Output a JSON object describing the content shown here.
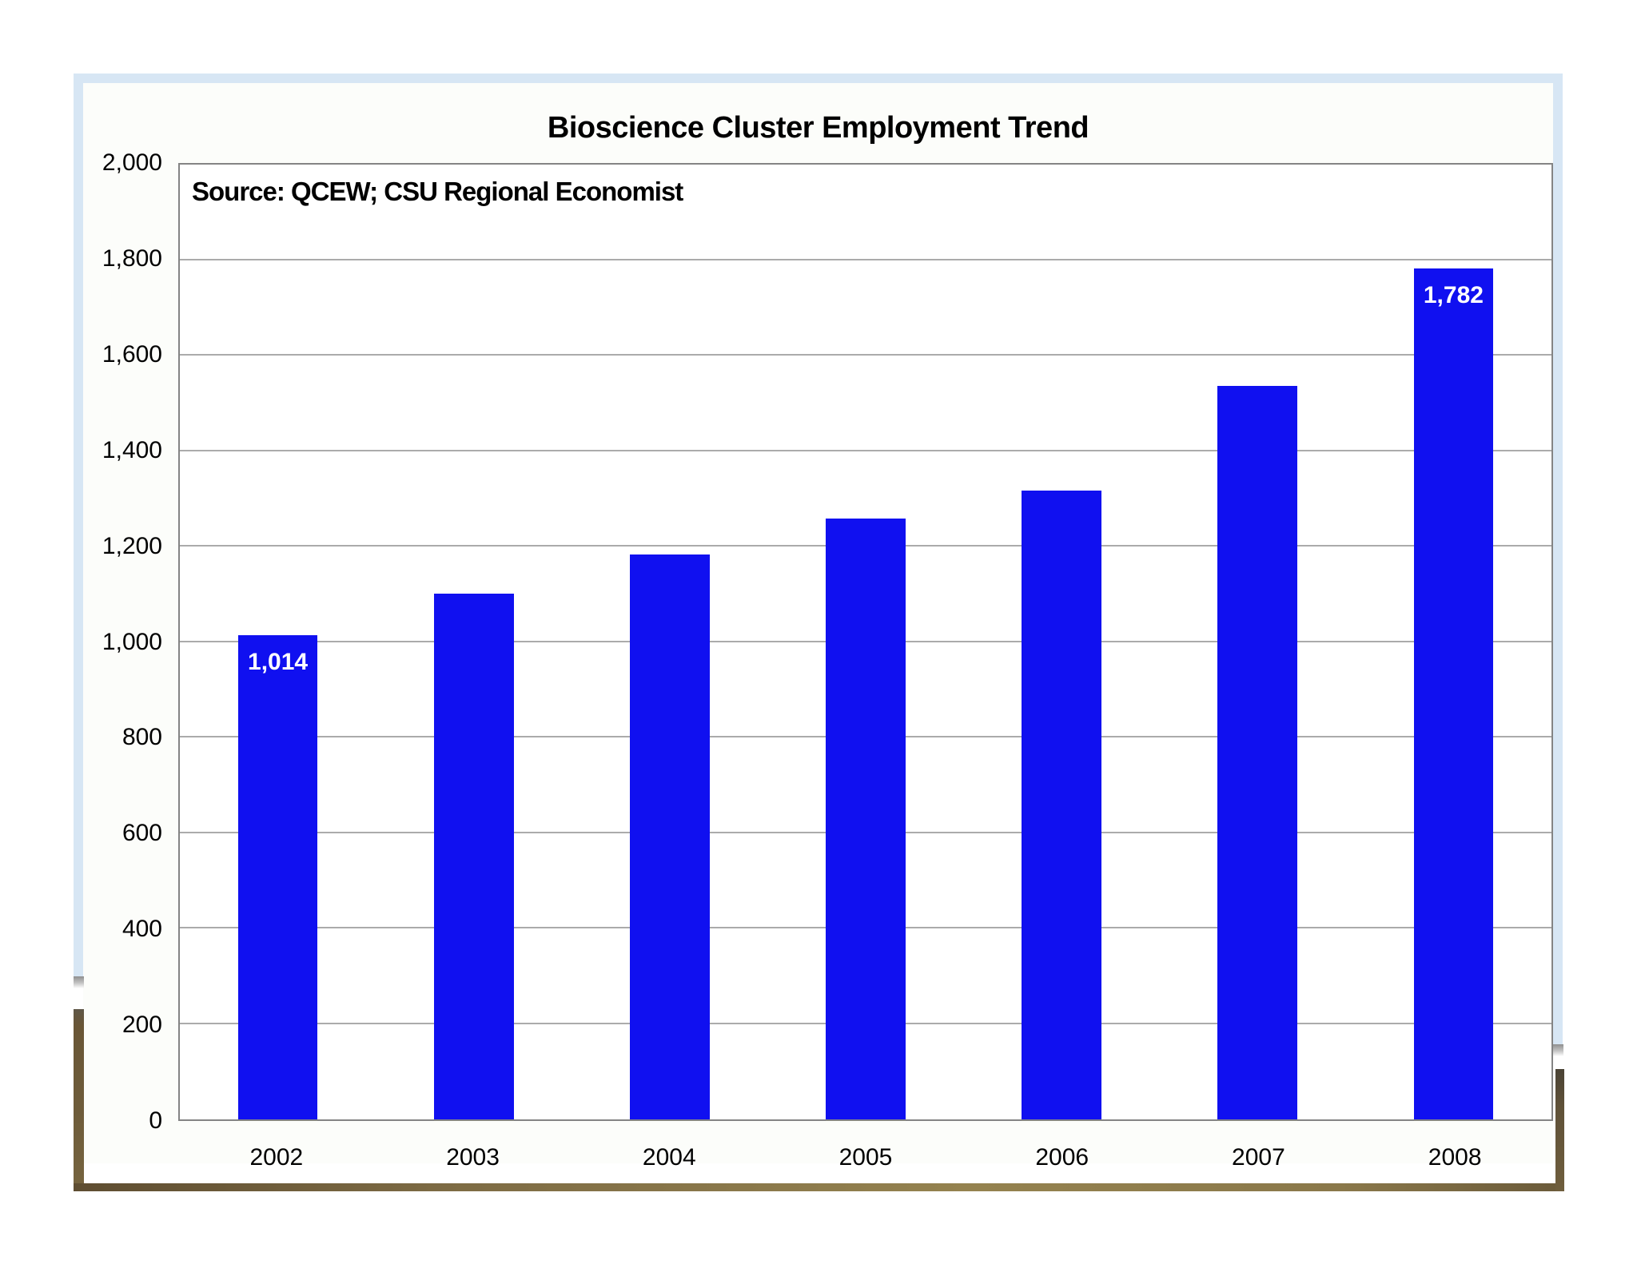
{
  "chart_data": {
    "type": "bar",
    "title": "Bioscience Cluster Employment Trend",
    "source_note": "Source: QCEW; CSU Regional Economist",
    "categories": [
      "2002",
      "2003",
      "2004",
      "2005",
      "2006",
      "2007",
      "2008"
    ],
    "values": [
      1014,
      1102,
      1184,
      1258,
      1317,
      1536,
      1782
    ],
    "data_labels": {
      "0": "1,014",
      "6": "1,782"
    },
    "xlabel": "",
    "ylabel": "",
    "ylim": [
      0,
      2000
    ],
    "ytick_interval": 200,
    "ytick_labels": [
      "0",
      "200",
      "400",
      "600",
      "800",
      "1,000",
      "1,200",
      "1,400",
      "1,600",
      "1,800",
      "2,000"
    ],
    "grid": "horizontal",
    "legend": false,
    "bar_color": "#1010f0",
    "bar_label_color": "#ffffff",
    "gridline_color": "#ababab",
    "plot_border_color": "#848484"
  },
  "decor": {
    "photo_border_color": "#d7e6f4",
    "frame_dark_brown": "#5e4d31",
    "frame_gold": "#94824f",
    "shadow_gray": "#8f8f8f",
    "chart_background": "#fcfdfa"
  }
}
